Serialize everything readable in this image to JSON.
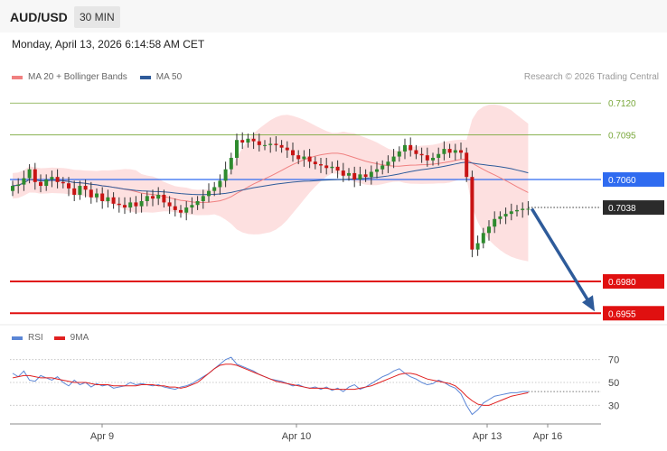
{
  "header": {
    "symbol": "AUD/USD",
    "timeframe": "30 MIN"
  },
  "datetime": "Monday, April 13, 2026 6:14:58 AM CET",
  "legend": {
    "ma20": {
      "label": "MA 20 + Bollinger Bands",
      "color": "#f08080"
    },
    "ma50": {
      "label": "MA 50",
      "color": "#2e5b9a"
    }
  },
  "credit": "Research © 2026 Trading Central",
  "rsi_legend": {
    "rsi": {
      "label": "RSI",
      "color": "#5b86d6"
    },
    "ma9": {
      "label": "9MA",
      "color": "#e02020"
    }
  },
  "chart_data": [
    {
      "type": "candlestick",
      "ylim": [
        0.6946,
        0.714
      ],
      "x_ticks": [
        "Apr 9",
        "Apr 10",
        "Apr 13",
        "Apr 16"
      ],
      "levels": [
        {
          "name": "level-0.7120",
          "label": "0.7120",
          "value": 0.712,
          "color": "#7aa83c",
          "style": "thin-green"
        },
        {
          "name": "level-0.7095",
          "label": "0.7095",
          "value": 0.7095,
          "color": "#7aa83c",
          "style": "thin-green"
        },
        {
          "name": "level-0.7060",
          "label": "0.7060",
          "value": 0.706,
          "color": "#2f6bf0",
          "style": "blue-box"
        },
        {
          "name": "level-0.7038",
          "label": "0.7038",
          "value": 0.7038,
          "color": "#333333",
          "style": "current-price"
        },
        {
          "name": "level-0.6980",
          "label": "0.6980",
          "value": 0.698,
          "color": "#e01010",
          "style": "red-box"
        },
        {
          "name": "level-0.6955",
          "label": "0.6955",
          "value": 0.6955,
          "color": "#e01010",
          "style": "red-box"
        }
      ],
      "forecast_arrow": {
        "from": 0.7037,
        "to": 0.6955,
        "color": "#2e5b9a"
      },
      "close_series": [
        0.7055,
        0.7056,
        0.7061,
        0.7068,
        0.7058,
        0.7055,
        0.706,
        0.7062,
        0.7058,
        0.7057,
        0.7053,
        0.7048,
        0.7055,
        0.7052,
        0.7046,
        0.7049,
        0.7043,
        0.7046,
        0.7041,
        0.704,
        0.7038,
        0.7042,
        0.7039,
        0.7043,
        0.7047,
        0.7045,
        0.7048,
        0.7042,
        0.7039,
        0.7036,
        0.7034,
        0.7038,
        0.704,
        0.7043,
        0.7047,
        0.7051,
        0.7054,
        0.7059,
        0.7068,
        0.7077,
        0.7091,
        0.7089,
        0.7092,
        0.709,
        0.7087,
        0.7087,
        0.7088,
        0.7087,
        0.7085,
        0.7083,
        0.7079,
        0.7076,
        0.7078,
        0.7074,
        0.7072,
        0.7071,
        0.7069,
        0.707,
        0.7067,
        0.7063,
        0.7065,
        0.706,
        0.7064,
        0.7062,
        0.7066,
        0.7068,
        0.7071,
        0.7074,
        0.7078,
        0.7082,
        0.7087,
        0.7083,
        0.708,
        0.7079,
        0.7075,
        0.7077,
        0.708,
        0.7084,
        0.7081,
        0.7083,
        0.7081,
        0.7062,
        0.7005,
        0.701,
        0.7018,
        0.7023,
        0.7029,
        0.7031,
        0.7033,
        0.7035,
        0.7036,
        0.7037,
        0.7037
      ]
    },
    {
      "type": "line",
      "title": "RSI",
      "ylim": [
        20,
        80
      ],
      "y_ticks": [
        30,
        50,
        70
      ],
      "x_ticks": [
        "Apr 9",
        "Apr 10",
        "Apr 13",
        "Apr 16"
      ],
      "series": [
        {
          "name": "RSI",
          "color": "#5b86d6",
          "values": [
            58,
            55,
            60,
            52,
            51,
            56,
            54,
            52,
            55,
            50,
            47,
            52,
            48,
            50,
            46,
            49,
            47,
            48,
            45,
            46,
            47,
            50,
            48,
            49,
            48,
            47,
            48,
            46,
            45,
            44,
            46,
            47,
            49,
            52,
            55,
            58,
            62,
            66,
            70,
            72,
            66,
            64,
            62,
            60,
            57,
            55,
            53,
            52,
            51,
            49,
            47,
            48,
            46,
            45,
            46,
            44,
            46,
            43,
            45,
            42,
            46,
            48,
            44,
            46,
            49,
            52,
            55,
            57,
            60,
            62,
            58,
            55,
            53,
            50,
            48,
            49,
            52,
            50,
            47,
            45,
            40,
            30,
            22,
            26,
            32,
            35,
            38,
            39,
            40,
            41,
            41,
            42,
            42
          ]
        },
        {
          "name": "9MA",
          "color": "#e02020",
          "values": [
            54,
            55,
            56,
            56,
            55,
            54,
            54,
            54,
            53,
            52,
            51,
            50,
            50,
            50,
            49,
            48,
            48,
            48,
            47,
            47,
            47,
            47,
            47,
            48,
            48,
            48,
            47,
            47,
            46,
            46,
            45,
            46,
            48,
            50,
            54,
            58,
            62,
            65,
            66,
            66,
            65,
            63,
            61,
            59,
            57,
            55,
            53,
            51,
            50,
            49,
            48,
            47,
            46,
            45,
            45,
            45,
            45,
            44,
            44,
            44,
            44,
            44,
            45,
            46,
            47,
            49,
            51,
            53,
            55,
            57,
            58,
            58,
            57,
            55,
            53,
            52,
            51,
            50,
            49,
            47,
            43,
            38,
            34,
            31,
            30,
            30,
            32,
            34,
            36,
            38,
            39,
            40,
            41
          ]
        }
      ]
    }
  ]
}
